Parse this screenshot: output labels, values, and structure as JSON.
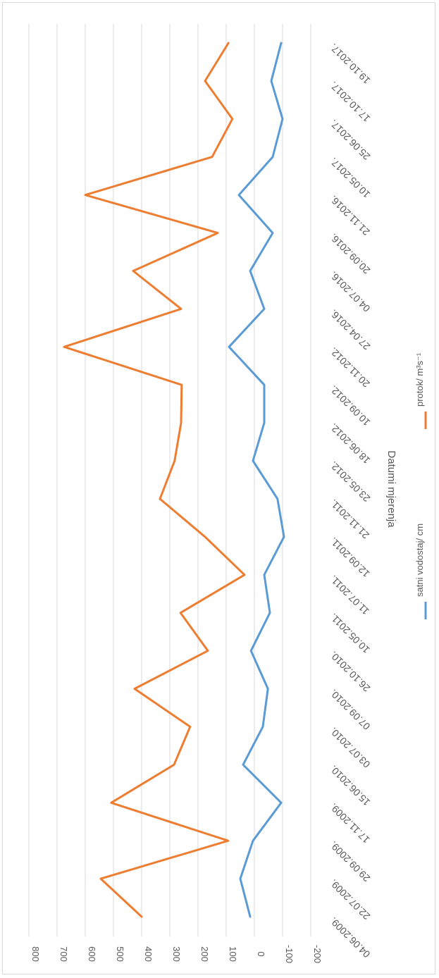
{
  "chart_data": {
    "type": "line",
    "orientation": "rotated-90-clockwise",
    "xlabel": "Datumi mjerenja",
    "categories": [
      "04.06.2009.",
      "22.07.2009.",
      "29.09.2009.",
      "17.11.2009.",
      "15.06.2010.",
      "03.07.2010.",
      "07.09.2010.",
      "26.10.2010.",
      "10.05.2011.",
      "11.07.2011.",
      "12.09.2011.",
      "21.11.2011.",
      "23.05.2012.",
      "18.06.2012.",
      "10.09.2012.",
      "20.11.2012.",
      "27.04.2016.",
      "04.07.2016.",
      "20.09.2016.",
      "21.11.2016.",
      "10.05.2017.",
      "25.06.2017.",
      "17.10.2017.",
      "19.10.2017."
    ],
    "series": [
      {
        "name": "satni vodostaj/ cm",
        "color": "#5b9bd5",
        "values": [
          15,
          50,
          5,
          -95,
          40,
          -30,
          -48,
          12,
          -55,
          -35,
          -105,
          -82,
          5,
          -35,
          -35,
          90,
          -35,
          15,
          -65,
          55,
          -65,
          -100,
          -60,
          -95
        ]
      },
      {
        "name": "protok/ m³s⁻¹",
        "color": "#ed7d31",
        "values": [
          400,
          545,
          93,
          508,
          285,
          228,
          425,
          165,
          262,
          35,
          175,
          335,
          283,
          260,
          258,
          675,
          260,
          430,
          130,
          600,
          150,
          78,
          175,
          92
        ]
      }
    ],
    "ylim": [
      -200,
      800
    ],
    "yticks": [
      800,
      700,
      600,
      500,
      400,
      300,
      200,
      100,
      0,
      -100,
      -200
    ],
    "grid": true,
    "legend_position": "right"
  }
}
